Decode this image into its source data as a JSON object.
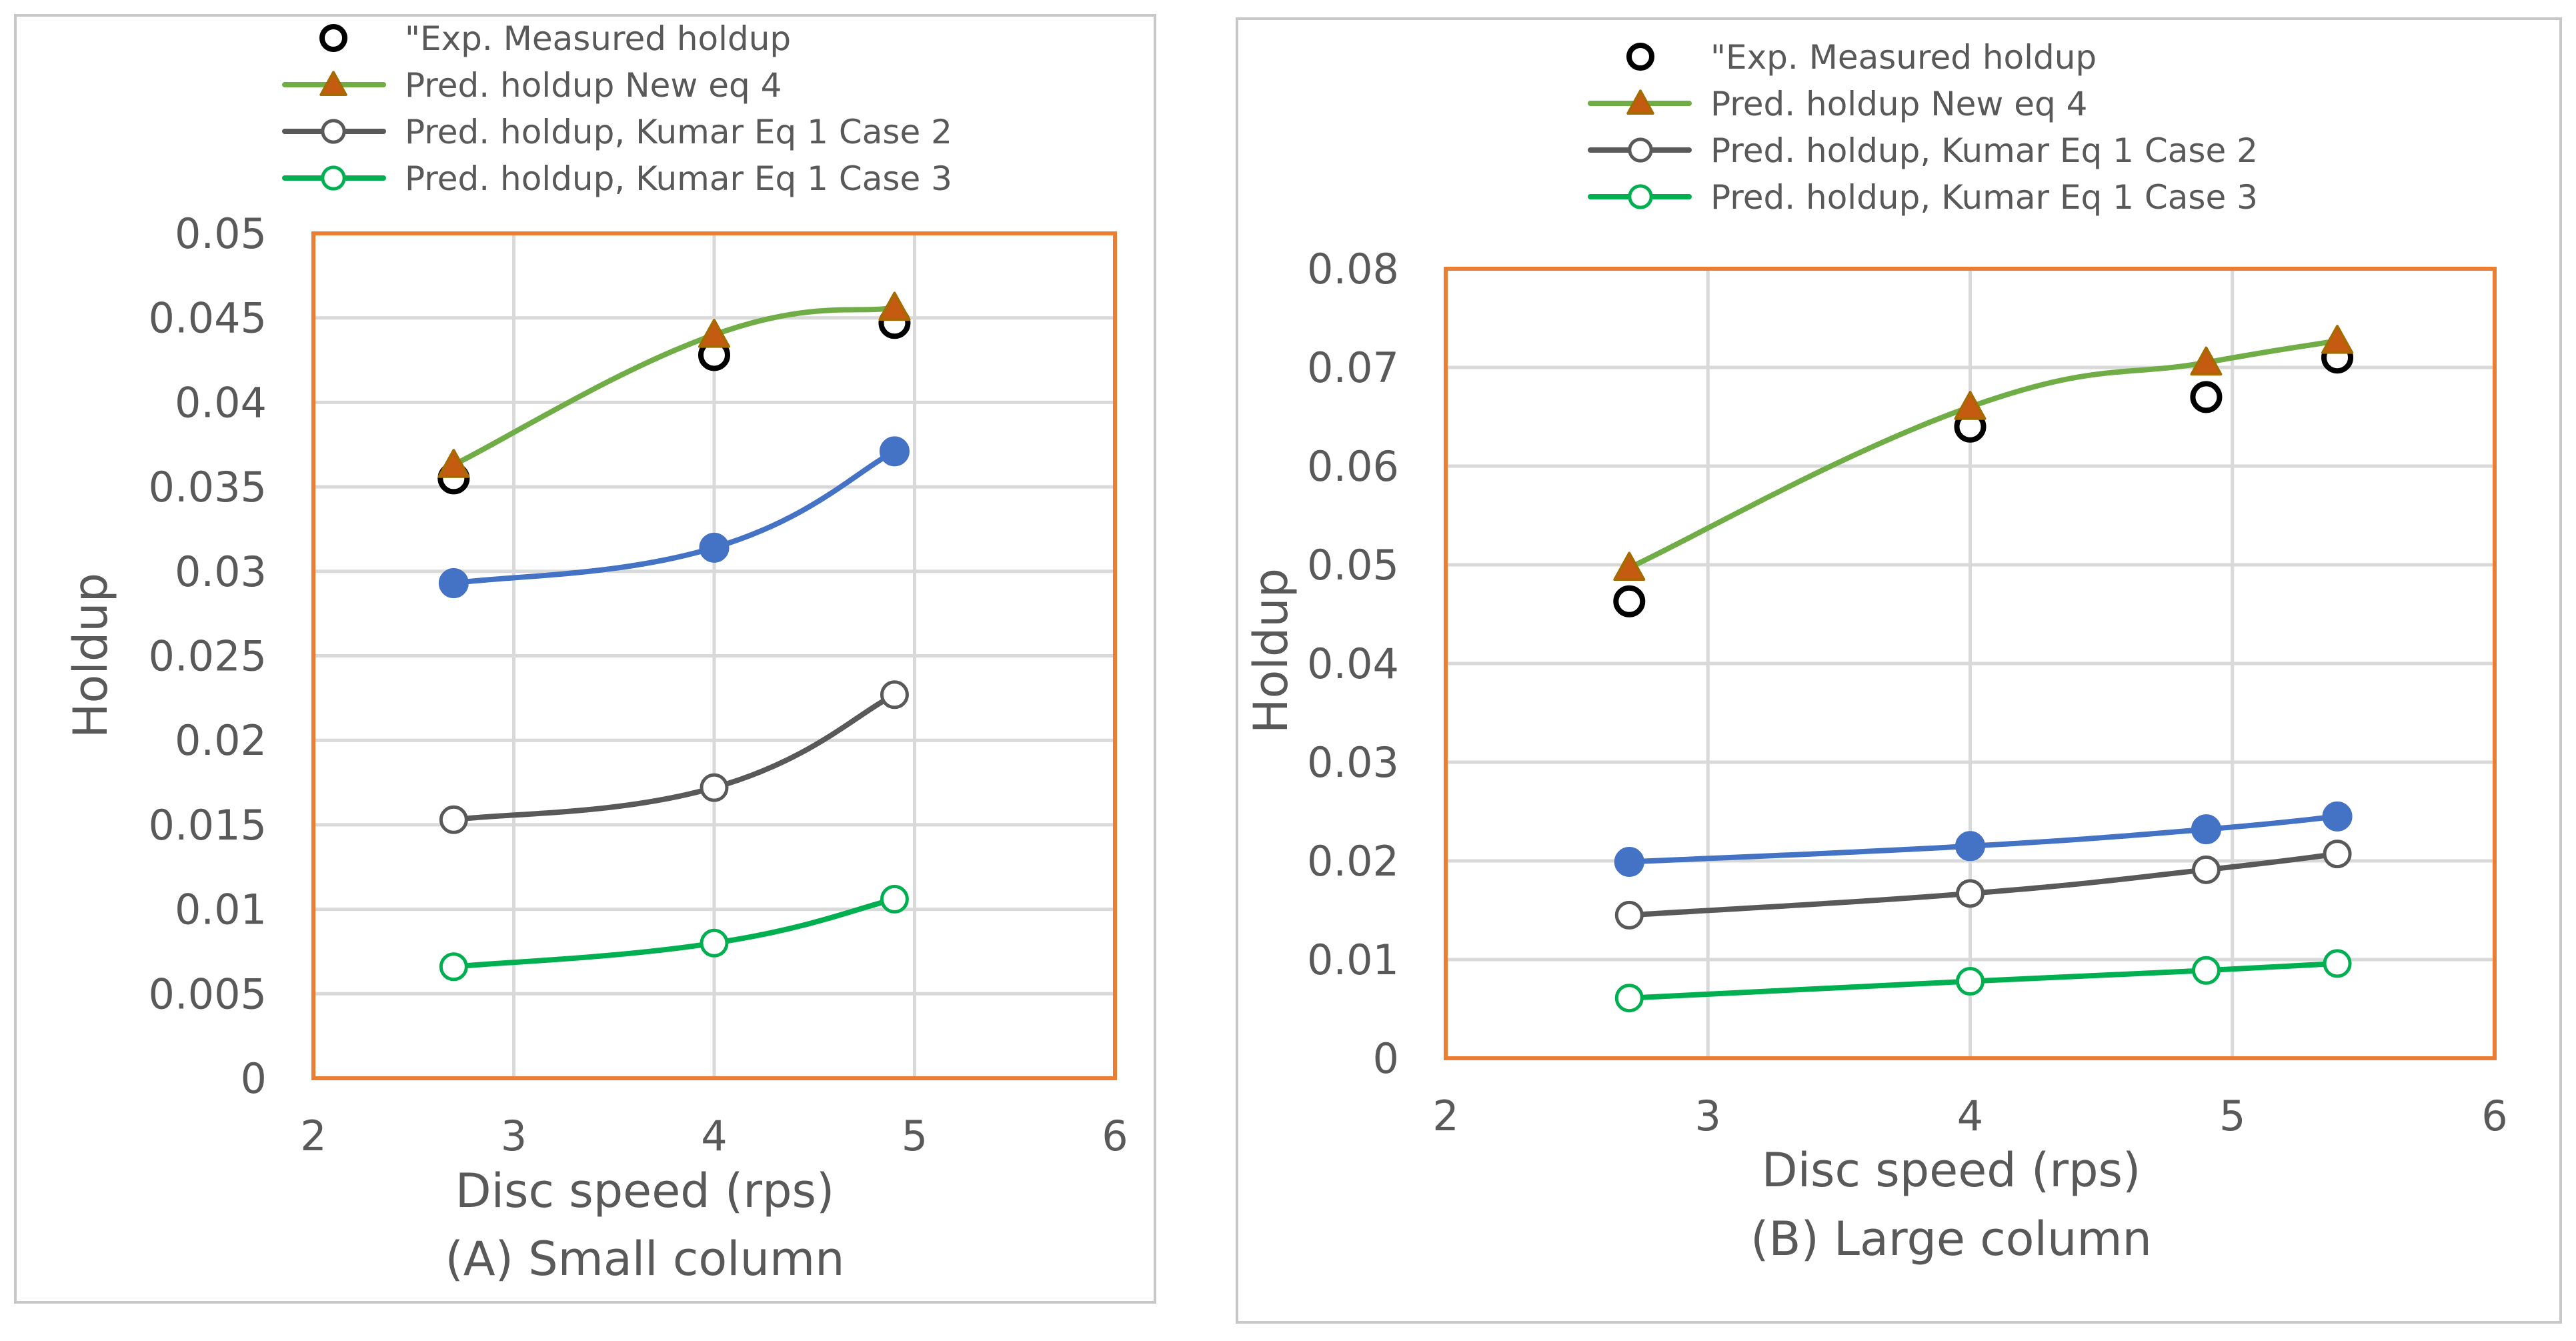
{
  "legend_entries": [
    "\"Exp. Measured holdup",
    "Pred. holdup New eq 4",
    "Pred. holdup, Kumar Eq 1 Case 2",
    "Pred. holdup, Kumar Eq 1 Case 3"
  ],
  "colors": {
    "measured": "#000000",
    "new_eq4_line": "#70ad47",
    "new_eq4_marker_fill": "#c55a11",
    "new_eq4_marker_edge": "#a66a00",
    "blue_series": "#4472c4",
    "case2": "#595959",
    "case3": "#00b050",
    "plot_border": "#ed7d31",
    "grid": "#d9d9d9",
    "panel_border": "#c8c8c8",
    "text": "#595959"
  },
  "chart_data": [
    {
      "type": "scatter",
      "caption": "(A) Small column",
      "xlabel": "Disc speed (rps)",
      "ylabel": "Holdup",
      "xlim": [
        2,
        6
      ],
      "ylim": [
        0,
        0.05
      ],
      "x_ticks": [
        "2",
        "3",
        "4",
        "5",
        "6"
      ],
      "y_ticks": [
        "0",
        "0.005",
        "0.01",
        "0.015",
        "0.02",
        "0.025",
        "0.03",
        "0.035",
        "0.04",
        "0.045",
        "0.05"
      ],
      "grid": true,
      "legend_position": "top",
      "series": [
        {
          "name": "\"Exp. Measured holdup",
          "marker": "open-circle",
          "line": false,
          "x": [
            2.7,
            4.0,
            4.9
          ],
          "y": [
            0.0355,
            0.0428,
            0.0447
          ]
        },
        {
          "name": "Pred. holdup New eq 4",
          "marker": "triangle",
          "line": true,
          "x": [
            2.7,
            4.0,
            4.9
          ],
          "y": [
            0.0363,
            0.044,
            0.0456
          ]
        },
        {
          "marker": "filled-circle",
          "line": true,
          "x": [
            2.7,
            4.0,
            4.9
          ],
          "y": [
            0.0293,
            0.0314,
            0.0371
          ]
        },
        {
          "name": "Pred. holdup, Kumar Eq 1 Case 2",
          "marker": "open-circle",
          "line": true,
          "x": [
            2.7,
            4.0,
            4.9
          ],
          "y": [
            0.0153,
            0.0172,
            0.0227
          ]
        },
        {
          "name": "Pred. holdup, Kumar Eq 1 Case 3",
          "marker": "open-circle",
          "line": true,
          "x": [
            2.7,
            4.0,
            4.9
          ],
          "y": [
            0.0066,
            0.008,
            0.0106
          ]
        }
      ]
    },
    {
      "type": "scatter",
      "caption": "(B) Large column",
      "xlabel": "Disc speed (rps)",
      "ylabel": "Holdup",
      "xlim": [
        2,
        6
      ],
      "ylim": [
        0,
        0.08
      ],
      "x_ticks": [
        "2",
        "3",
        "4",
        "5",
        "6"
      ],
      "y_ticks": [
        "0",
        "0.01",
        "0.02",
        "0.03",
        "0.04",
        "0.05",
        "0.06",
        "0.07",
        "0.08"
      ],
      "grid": true,
      "legend_position": "top",
      "series": [
        {
          "name": "\"Exp. Measured holdup",
          "marker": "open-circle",
          "line": false,
          "x": [
            2.7,
            4.0,
            4.9,
            5.4
          ],
          "y": [
            0.0463,
            0.064,
            0.067,
            0.071
          ]
        },
        {
          "name": "Pred. holdup New eq 4",
          "marker": "triangle",
          "line": true,
          "x": [
            2.7,
            4.0,
            4.9,
            5.4
          ],
          "y": [
            0.0497,
            0.066,
            0.0705,
            0.0727
          ]
        },
        {
          "marker": "filled-circle",
          "line": true,
          "x": [
            2.7,
            4.0,
            4.9,
            5.4
          ],
          "y": [
            0.0199,
            0.0215,
            0.0232,
            0.0245
          ]
        },
        {
          "name": "Pred. holdup, Kumar Eq 1 Case 2",
          "marker": "open-circle",
          "line": true,
          "x": [
            2.7,
            4.0,
            4.9,
            5.4
          ],
          "y": [
            0.0145,
            0.0167,
            0.0191,
            0.0207
          ]
        },
        {
          "name": "Pred. holdup, Kumar Eq 1 Case 3",
          "marker": "open-circle",
          "line": true,
          "x": [
            2.7,
            4.0,
            4.9,
            5.4
          ],
          "y": [
            0.0061,
            0.0078,
            0.0089,
            0.0096
          ]
        }
      ]
    }
  ]
}
